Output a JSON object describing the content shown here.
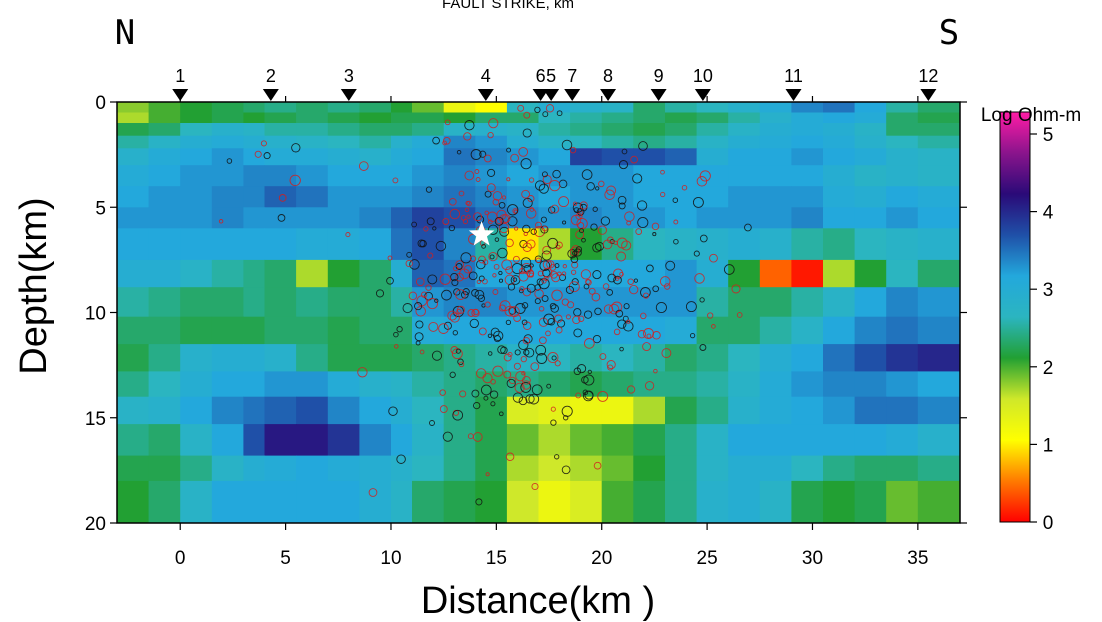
{
  "header": {
    "top_title": "FAULT STRIKE, km",
    "left_dir": "N",
    "right_dir": "S"
  },
  "chart_data": {
    "type": "heatmap",
    "title": "FAULT STRIKE, km",
    "xlabel": "Distance(km )",
    "ylabel": "Depth(km)",
    "xlim": [
      -3,
      37
    ],
    "ylim": [
      20,
      0
    ],
    "x_ticks": [
      0,
      5,
      10,
      15,
      20,
      25,
      30,
      35
    ],
    "y_ticks": [
      0,
      5,
      10,
      15,
      20
    ],
    "stations": [
      {
        "label": "1",
        "x": 0
      },
      {
        "label": "2",
        "x": 4.3
      },
      {
        "label": "3",
        "x": 8
      },
      {
        "label": "4",
        "x": 14.5
      },
      {
        "label": "6",
        "x": 17.1
      },
      {
        "label": "5",
        "x": 17.6
      },
      {
        "label": "7",
        "x": 18.6
      },
      {
        "label": "8",
        "x": 20.3
      },
      {
        "label": "9",
        "x": 22.7
      },
      {
        "label": "10",
        "x": 24.8
      },
      {
        "label": "11",
        "x": 29.1
      },
      {
        "label": "12",
        "x": 35.5
      }
    ],
    "colorbar": {
      "label": "Log Ohm-m",
      "min": 0,
      "max": 5,
      "ticks": [
        0,
        1,
        2,
        3,
        4,
        5
      ],
      "stops": [
        "#ff0000",
        "#ff7a00",
        "#ffff00",
        "#cfe82a",
        "#22a033",
        "#2bb5c0",
        "#23a8dc",
        "#1f50a8",
        "#2a0a78",
        "#8a148c",
        "#ff1ca6"
      ]
    },
    "columns_x": [
      -3,
      -1.5,
      0,
      1.5,
      3,
      4,
      5.5,
      7,
      8.5,
      10,
      11,
      12.5,
      14,
      15.5,
      17,
      18.5,
      20,
      21.5,
      23,
      24.5,
      26,
      27.5,
      29,
      30.5,
      32,
      33.5,
      35,
      37
    ],
    "rows_depth": [
      0,
      0.5,
      1,
      1.6,
      2.2,
      3,
      4,
      5,
      6,
      7.5,
      8.8,
      10.2,
      11.5,
      12.8,
      14,
      15.3,
      16.8,
      18,
      20
    ],
    "values": [
      [
        1.7,
        1.9,
        2.0,
        2.1,
        2.2,
        2.3,
        2.2,
        2.3,
        2.2,
        2.0,
        1.8,
        1.2,
        1.0,
        2.5,
        2.8,
        2.7,
        2.6,
        2.2,
        2.4,
        2.5,
        2.7,
        2.9,
        3.2,
        3.3,
        3.0,
        2.4,
        2.2
      ],
      [
        1.6,
        1.9,
        2.0,
        2.1,
        2.0,
        2.1,
        2.2,
        2.1,
        2.0,
        2.1,
        2.1,
        2.0,
        2.2,
        2.2,
        2.5,
        2.4,
        2.3,
        2.2,
        2.1,
        2.2,
        2.4,
        2.7,
        2.9,
        3.0,
        2.9,
        2.2,
        2.1
      ],
      [
        2.1,
        2.2,
        2.5,
        2.7,
        2.6,
        2.4,
        2.4,
        2.3,
        2.2,
        2.2,
        2.3,
        2.6,
        2.7,
        2.6,
        2.4,
        2.3,
        2.2,
        2.1,
        2.2,
        2.4,
        2.6,
        2.8,
        2.9,
        2.8,
        2.6,
        2.2,
        2.2
      ],
      [
        2.4,
        2.6,
        2.8,
        2.9,
        2.8,
        2.7,
        2.6,
        2.5,
        2.4,
        2.7,
        2.9,
        3.2,
        3.1,
        2.8,
        2.6,
        2.5,
        2.4,
        2.3,
        2.4,
        2.6,
        2.8,
        2.9,
        3.0,
        2.9,
        2.7,
        2.5,
        2.4
      ],
      [
        2.7,
        2.9,
        3.0,
        3.1,
        3.0,
        2.9,
        2.9,
        2.8,
        2.7,
        2.9,
        3.0,
        3.3,
        3.2,
        3.1,
        3.0,
        3.6,
        3.5,
        3.5,
        3.4,
        2.8,
        3.0,
        3.0,
        3.1,
        3.0,
        2.9,
        2.7,
        2.6
      ],
      [
        2.9,
        3.0,
        3.1,
        3.1,
        3.2,
        3.2,
        3.1,
        3.0,
        3.0,
        3.0,
        3.1,
        3.2,
        3.1,
        3.0,
        3.1,
        3.1,
        3.1,
        3.0,
        3.0,
        3.0,
        3.0,
        3.0,
        3.0,
        2.8,
        2.6,
        2.7,
        2.6
      ],
      [
        3.0,
        3.1,
        3.1,
        3.2,
        3.2,
        3.4,
        3.3,
        3.1,
        3.1,
        3.1,
        3.2,
        3.3,
        3.2,
        3.1,
        3.0,
        3.1,
        3.1,
        3.0,
        3.0,
        3.0,
        3.1,
        3.1,
        3.1,
        2.9,
        2.8,
        3.0,
        2.9
      ],
      [
        3.1,
        3.1,
        3.1,
        3.2,
        3.1,
        3.1,
        3.1,
        3.1,
        3.2,
        3.4,
        3.6,
        3.5,
        3.3,
        3.2,
        3.1,
        3.2,
        3.1,
        3.1,
        3.0,
        3.1,
        3.1,
        3.1,
        3.2,
        3.0,
        3.0,
        3.1,
        3.0
      ],
      [
        3.0,
        3.0,
        3.0,
        3.0,
        3.0,
        3.0,
        2.9,
        2.9,
        3.0,
        3.3,
        3.5,
        3.2,
        2.4,
        0.9,
        1.6,
        2.0,
        2.3,
        2.5,
        2.6,
        2.7,
        2.8,
        2.7,
        2.4,
        2.3,
        2.5,
        2.6,
        2.7
      ],
      [
        2.8,
        2.8,
        2.6,
        2.4,
        2.3,
        2.2,
        1.6,
        2.0,
        2.2,
        2.8,
        3.4,
        3.3,
        3.0,
        3.0,
        3.0,
        3.0,
        3.0,
        3.0,
        3.1,
        2.8,
        2.0,
        0.4,
        0.1,
        1.6,
        2.0,
        2.5,
        2.2
      ],
      [
        2.4,
        2.3,
        2.2,
        2.2,
        2.3,
        2.2,
        2.3,
        2.2,
        2.2,
        2.4,
        3.1,
        3.2,
        3.2,
        3.1,
        3.1,
        3.1,
        3.1,
        3.1,
        3.1,
        2.4,
        2.2,
        2.2,
        2.4,
        2.6,
        3.0,
        3.2,
        3.1
      ],
      [
        2.2,
        2.2,
        2.1,
        2.1,
        2.1,
        2.2,
        2.2,
        2.1,
        2.2,
        2.2,
        2.9,
        3.0,
        3.0,
        3.0,
        3.0,
        3.0,
        3.0,
        3.0,
        2.9,
        2.2,
        2.2,
        2.4,
        2.6,
        3.0,
        3.2,
        3.3,
        3.2
      ],
      [
        2.1,
        2.3,
        2.7,
        2.8,
        2.8,
        2.7,
        2.3,
        2.1,
        2.1,
        2.1,
        2.2,
        2.3,
        2.4,
        2.6,
        2.5,
        2.4,
        2.5,
        2.4,
        2.2,
        2.3,
        2.5,
        2.8,
        3.0,
        3.3,
        3.5,
        3.7,
        3.8
      ],
      [
        2.3,
        2.5,
        2.8,
        3.0,
        3.0,
        3.1,
        3.1,
        2.9,
        2.7,
        2.6,
        2.4,
        2.3,
        2.2,
        2.3,
        2.2,
        2.1,
        2.2,
        2.3,
        2.3,
        2.4,
        2.6,
        2.9,
        3.1,
        3.2,
        3.2,
        3.1,
        3.0
      ],
      [
        2.6,
        2.7,
        3.0,
        3.2,
        3.3,
        3.4,
        3.5,
        3.2,
        3.0,
        2.8,
        2.5,
        2.3,
        2.1,
        1.4,
        1.3,
        1.2,
        1.2,
        1.6,
        2.1,
        2.3,
        2.7,
        2.9,
        3.0,
        3.1,
        3.3,
        3.3,
        3.2
      ],
      [
        2.3,
        2.2,
        2.6,
        3.0,
        3.5,
        3.9,
        3.9,
        3.7,
        3.2,
        3.0,
        2.6,
        2.3,
        2.1,
        1.8,
        1.6,
        1.8,
        1.9,
        2.1,
        2.3,
        2.6,
        3.0,
        3.0,
        3.0,
        3.0,
        3.0,
        2.9,
        2.7
      ],
      [
        2.1,
        2.1,
        2.3,
        2.6,
        2.8,
        2.9,
        3.0,
        2.9,
        2.8,
        2.7,
        2.5,
        2.3,
        2.1,
        1.6,
        1.5,
        1.6,
        1.8,
        2.0,
        2.3,
        2.6,
        2.8,
        2.8,
        2.5,
        2.3,
        2.2,
        2.2,
        2.3
      ],
      [
        2.0,
        2.2,
        2.6,
        3.0,
        3.0,
        3.0,
        3.0,
        3.0,
        2.8,
        2.6,
        2.2,
        2.1,
        2.0,
        1.5,
        1.2,
        1.4,
        1.9,
        2.1,
        2.3,
        2.7,
        2.8,
        2.6,
        2.1,
        2.0,
        2.1,
        1.8,
        1.9
      ]
    ],
    "hypocenter": {
      "x": 14.3,
      "depth": 6.3
    }
  }
}
